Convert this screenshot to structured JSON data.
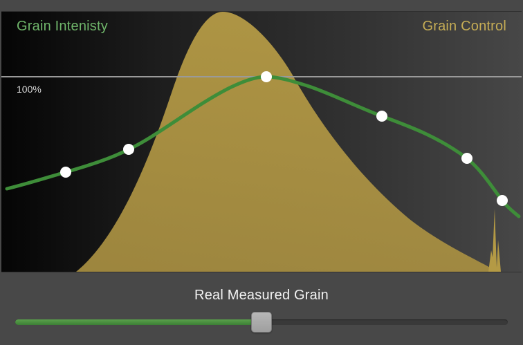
{
  "graph": {
    "left_label": "Grain Intenisty",
    "right_label": "Grain Control",
    "reference_label": "100%",
    "colors": {
      "intensity_curve": "#3e8d39",
      "grain_control_fill": "#b49a45",
      "left_label": "#6fb56a",
      "right_label": "#c6ad55"
    }
  },
  "slider": {
    "label": "Real Measured Grain",
    "value_percent": 50,
    "fill_color": "#5aa14b"
  }
}
